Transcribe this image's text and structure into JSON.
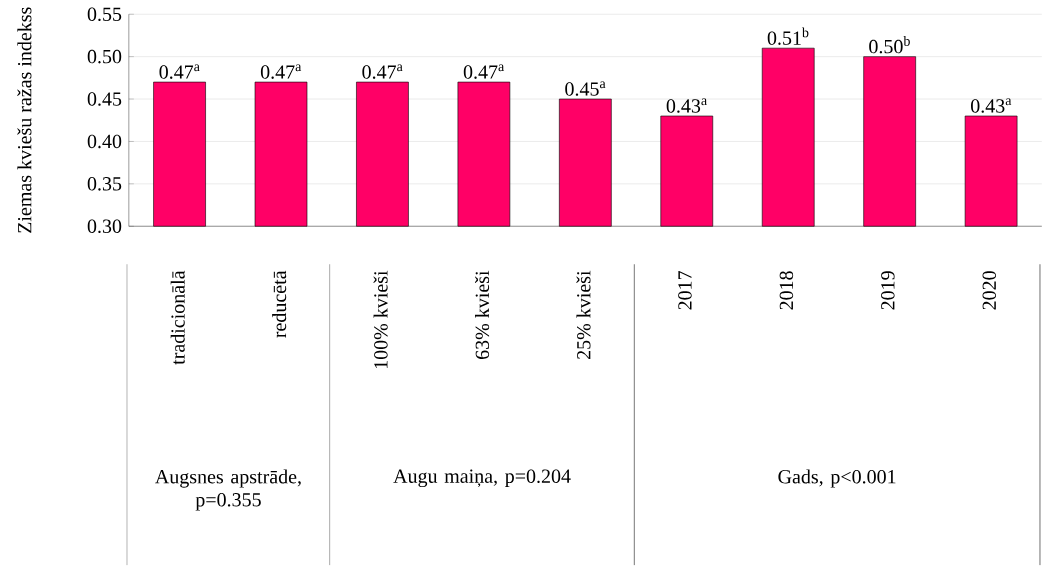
{
  "chart_data": {
    "type": "bar",
    "ylabel": "Ziemas kviešu ražas indekss",
    "categories": [
      "tradicionālā",
      "reducētā",
      "100% kvieši",
      "63% kvieši",
      "25% kvieši",
      "2017",
      "2018",
      "2019",
      "2020"
    ],
    "values": [
      0.47,
      0.47,
      0.47,
      0.47,
      0.45,
      0.43,
      0.51,
      0.5,
      0.43
    ],
    "value_labels": [
      "0.47$^{a}$",
      "0.47$^{a}$",
      "0.47$^{a}$",
      "0.47$^{a}$",
      "0.45$^{a}$",
      "0.43$^{a}$",
      "0.51$^{b}$",
      "0.50$^{b}$",
      "0.43$^{a}$"
    ],
    "color": "#ff0066",
    "ylim": [
      0.3,
      0.55
    ],
    "yticks": [
      {
        "value": 0.3,
        "label": "0.30"
      },
      {
        "value": 0.35,
        "label": "0.35"
      },
      {
        "value": 0.4,
        "label": "0.40"
      },
      {
        "value": 0.45,
        "label": "0.45"
      },
      {
        "value": 0.5,
        "label": "0.50"
      },
      {
        "value": 0.55,
        "label": "0.55"
      }
    ],
    "grid": "y",
    "annotations": [
      "Augsnes apstrāde, p=0.355",
      "Augu maiņa, p=0.204",
      "Gads, p<0.001"
    ]
  }
}
